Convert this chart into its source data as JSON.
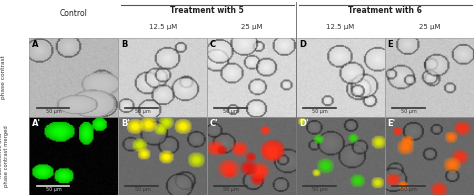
{
  "fig_width": 4.74,
  "fig_height": 1.95,
  "dpi": 100,
  "background_color": "#ffffff",
  "panel_labels_row1": [
    "A",
    "B",
    "C",
    "D",
    "E"
  ],
  "panel_labels_row2": [
    "A'",
    "B'",
    "C'",
    "D'",
    "E'"
  ],
  "top_label_treatment5": "Treatment with 5",
  "top_label_treatment6": "Treatment with 6",
  "control_label": "Control",
  "sub_col_labels": [
    "12.5 μM",
    "25 μM",
    "12.5 μM",
    "25 μM"
  ],
  "row1_bg": [
    "#b8b8b8",
    "#d2d2d2",
    "#d8d8d8",
    "#d8d8d8",
    "#c8c8c8"
  ],
  "row2_bg_a": "#111111",
  "row2_bg_bde": "#aaaaaa",
  "row2_bg_c": "#888888",
  "phase_label": "phase contrast",
  "fluor_label": "fluorescence and\nphase contrast merged"
}
